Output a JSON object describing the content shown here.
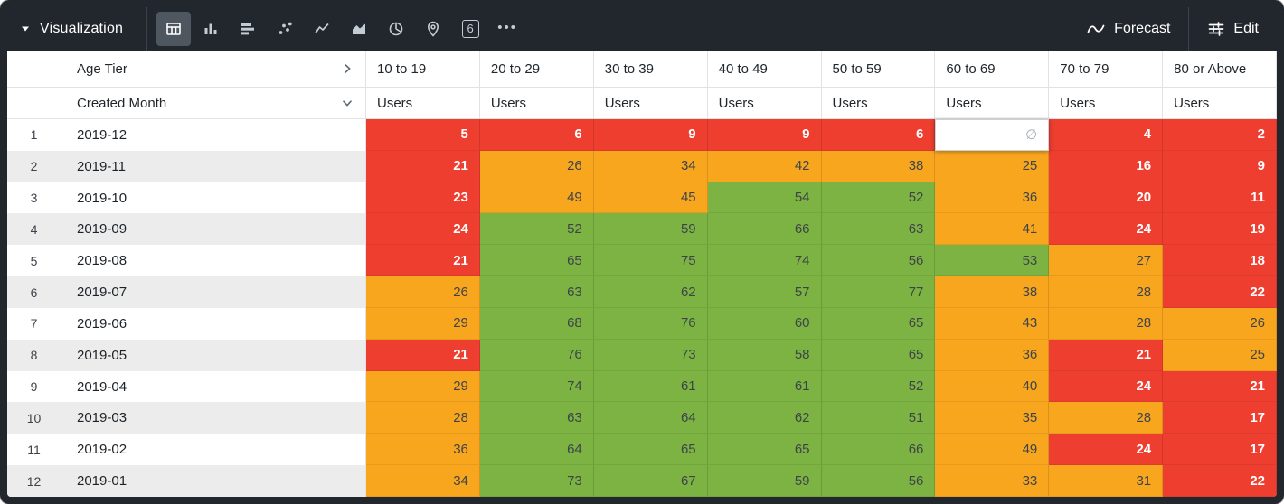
{
  "toolbar": {
    "title": "Visualization",
    "viz_types": [
      {
        "name": "table",
        "selected": true
      },
      {
        "name": "column-chart",
        "selected": false
      },
      {
        "name": "bar-chart",
        "selected": false
      },
      {
        "name": "scatter-plot",
        "selected": false
      },
      {
        "name": "line-chart",
        "selected": false
      },
      {
        "name": "area-chart",
        "selected": false
      },
      {
        "name": "pie-chart",
        "selected": false
      },
      {
        "name": "map",
        "selected": false
      },
      {
        "name": "single-value",
        "selected": false,
        "label": "6"
      },
      {
        "name": "more",
        "selected": false,
        "label": "•••"
      }
    ],
    "forecast_label": "Forecast",
    "edit_label": "Edit"
  },
  "table": {
    "pivot_header": "Age Tier",
    "row_dimension_header": "Created Month",
    "measure_label": "Users",
    "columns": [
      "10 to 19",
      "20 to 29",
      "30 to 39",
      "40 to 49",
      "50 to 59",
      "60 to 69",
      "70 to 79",
      "80 or Above"
    ],
    "null_symbol": "∅",
    "rows": [
      {
        "num": "1",
        "month": "2019-12",
        "cells": [
          {
            "v": "5",
            "c": "red"
          },
          {
            "v": "6",
            "c": "red"
          },
          {
            "v": "9",
            "c": "red"
          },
          {
            "v": "9",
            "c": "red"
          },
          {
            "v": "6",
            "c": "red"
          },
          {
            "v": "∅",
            "c": "null"
          },
          {
            "v": "4",
            "c": "red"
          },
          {
            "v": "2",
            "c": "red"
          }
        ]
      },
      {
        "num": "2",
        "month": "2019-11",
        "cells": [
          {
            "v": "21",
            "c": "red"
          },
          {
            "v": "26",
            "c": "orange"
          },
          {
            "v": "34",
            "c": "orange"
          },
          {
            "v": "42",
            "c": "orange"
          },
          {
            "v": "38",
            "c": "orange"
          },
          {
            "v": "25",
            "c": "orange"
          },
          {
            "v": "16",
            "c": "red"
          },
          {
            "v": "9",
            "c": "red"
          }
        ]
      },
      {
        "num": "3",
        "month": "2019-10",
        "cells": [
          {
            "v": "23",
            "c": "red"
          },
          {
            "v": "49",
            "c": "orange"
          },
          {
            "v": "45",
            "c": "orange"
          },
          {
            "v": "54",
            "c": "green"
          },
          {
            "v": "52",
            "c": "green"
          },
          {
            "v": "36",
            "c": "orange"
          },
          {
            "v": "20",
            "c": "red"
          },
          {
            "v": "11",
            "c": "red"
          }
        ]
      },
      {
        "num": "4",
        "month": "2019-09",
        "cells": [
          {
            "v": "24",
            "c": "red"
          },
          {
            "v": "52",
            "c": "green"
          },
          {
            "v": "59",
            "c": "green"
          },
          {
            "v": "66",
            "c": "green"
          },
          {
            "v": "63",
            "c": "green"
          },
          {
            "v": "41",
            "c": "orange"
          },
          {
            "v": "24",
            "c": "red"
          },
          {
            "v": "19",
            "c": "red"
          }
        ]
      },
      {
        "num": "5",
        "month": "2019-08",
        "cells": [
          {
            "v": "21",
            "c": "red"
          },
          {
            "v": "65",
            "c": "green"
          },
          {
            "v": "75",
            "c": "green"
          },
          {
            "v": "74",
            "c": "green"
          },
          {
            "v": "56",
            "c": "green"
          },
          {
            "v": "53",
            "c": "green"
          },
          {
            "v": "27",
            "c": "orange"
          },
          {
            "v": "18",
            "c": "red"
          }
        ]
      },
      {
        "num": "6",
        "month": "2019-07",
        "cells": [
          {
            "v": "26",
            "c": "orange"
          },
          {
            "v": "63",
            "c": "green"
          },
          {
            "v": "62",
            "c": "green"
          },
          {
            "v": "57",
            "c": "green"
          },
          {
            "v": "77",
            "c": "green"
          },
          {
            "v": "38",
            "c": "orange"
          },
          {
            "v": "28",
            "c": "orange"
          },
          {
            "v": "22",
            "c": "red"
          }
        ]
      },
      {
        "num": "7",
        "month": "2019-06",
        "cells": [
          {
            "v": "29",
            "c": "orange"
          },
          {
            "v": "68",
            "c": "green"
          },
          {
            "v": "76",
            "c": "green"
          },
          {
            "v": "60",
            "c": "green"
          },
          {
            "v": "65",
            "c": "green"
          },
          {
            "v": "43",
            "c": "orange"
          },
          {
            "v": "28",
            "c": "orange"
          },
          {
            "v": "26",
            "c": "orange"
          }
        ]
      },
      {
        "num": "8",
        "month": "2019-05",
        "cells": [
          {
            "v": "21",
            "c": "red"
          },
          {
            "v": "76",
            "c": "green"
          },
          {
            "v": "73",
            "c": "green"
          },
          {
            "v": "58",
            "c": "green"
          },
          {
            "v": "65",
            "c": "green"
          },
          {
            "v": "36",
            "c": "orange"
          },
          {
            "v": "21",
            "c": "red"
          },
          {
            "v": "25",
            "c": "orange"
          }
        ]
      },
      {
        "num": "9",
        "month": "2019-04",
        "cells": [
          {
            "v": "29",
            "c": "orange"
          },
          {
            "v": "74",
            "c": "green"
          },
          {
            "v": "61",
            "c": "green"
          },
          {
            "v": "61",
            "c": "green"
          },
          {
            "v": "52",
            "c": "green"
          },
          {
            "v": "40",
            "c": "orange"
          },
          {
            "v": "24",
            "c": "red"
          },
          {
            "v": "21",
            "c": "red"
          }
        ]
      },
      {
        "num": "10",
        "month": "2019-03",
        "cells": [
          {
            "v": "28",
            "c": "orange"
          },
          {
            "v": "63",
            "c": "green"
          },
          {
            "v": "64",
            "c": "green"
          },
          {
            "v": "62",
            "c": "green"
          },
          {
            "v": "51",
            "c": "green"
          },
          {
            "v": "35",
            "c": "orange"
          },
          {
            "v": "28",
            "c": "orange"
          },
          {
            "v": "17",
            "c": "red"
          }
        ]
      },
      {
        "num": "11",
        "month": "2019-02",
        "cells": [
          {
            "v": "36",
            "c": "orange"
          },
          {
            "v": "64",
            "c": "green"
          },
          {
            "v": "65",
            "c": "green"
          },
          {
            "v": "65",
            "c": "green"
          },
          {
            "v": "66",
            "c": "green"
          },
          {
            "v": "49",
            "c": "orange"
          },
          {
            "v": "24",
            "c": "red"
          },
          {
            "v": "17",
            "c": "red"
          }
        ]
      },
      {
        "num": "12",
        "month": "2019-01",
        "cells": [
          {
            "v": "34",
            "c": "orange"
          },
          {
            "v": "73",
            "c": "green"
          },
          {
            "v": "67",
            "c": "green"
          },
          {
            "v": "59",
            "c": "green"
          },
          {
            "v": "56",
            "c": "green"
          },
          {
            "v": "33",
            "c": "orange"
          },
          {
            "v": "31",
            "c": "orange"
          },
          {
            "v": "22",
            "c": "red"
          }
        ]
      }
    ]
  },
  "colors": {
    "red": "#ee3e30",
    "orange": "#f9a61f",
    "green": "#7cb342",
    "toolbar_bg": "#21272d"
  }
}
